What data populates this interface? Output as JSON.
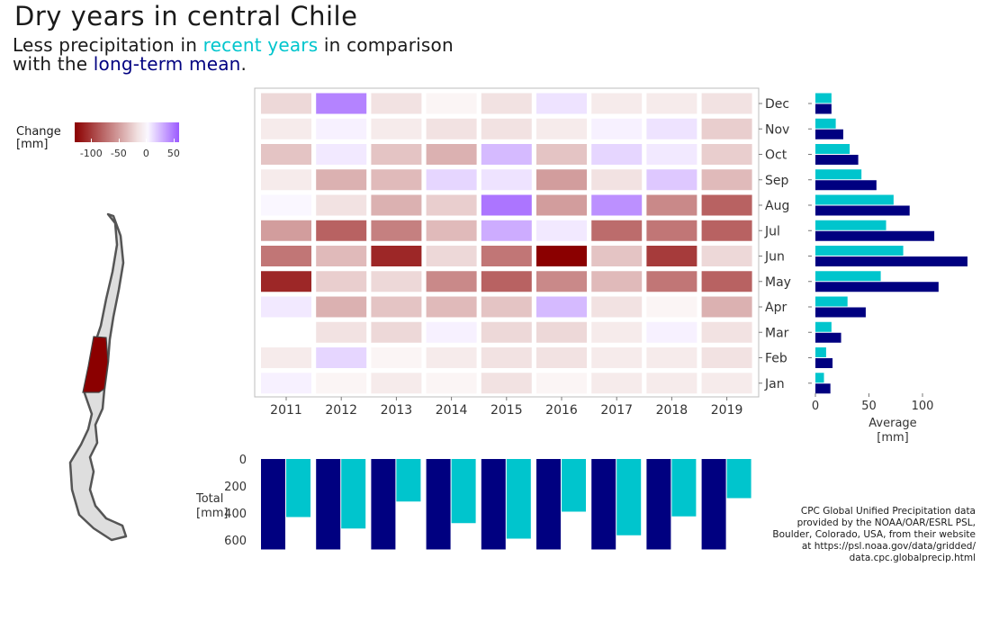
{
  "title": "Dry years in central Chile",
  "subtitle": {
    "line1_prefix": "Less precipitation in ",
    "line1_highlight": "recent years",
    "line1_suffix": " in comparison",
    "line2_prefix": "with the ",
    "line2_highlight": "long-term mean",
    "line2_suffix": "."
  },
  "colors": {
    "recent": "#00c5cd",
    "mean": "#000080",
    "dry": "#8b0000",
    "wet": "#9b59ff",
    "highlight_region": "#8b0000"
  },
  "legend": {
    "title_line1": "Change",
    "title_line2": "[mm]",
    "ticks": [
      "-100",
      "-50",
      "0",
      "50"
    ]
  },
  "source": {
    "line1": "CPC Global Unified Precipitation data",
    "line2": "provided by the NOAA/OAR/ESRL PSL,",
    "line3": "Boulder, Colorado, USA, from their website",
    "line4": "at https://psl.noaa.gov/data/gridded/",
    "line5": "data.cpc.globalprecip.html"
  },
  "chart_data": [
    {
      "type": "heatmap",
      "title": "",
      "years": [
        "2011",
        "2012",
        "2013",
        "2014",
        "2015",
        "2016",
        "2017",
        "2018",
        "2019"
      ],
      "months": [
        "Jan",
        "Feb",
        "Mar",
        "Apr",
        "May",
        "Jun",
        "Jul",
        "Aug",
        "Sep",
        "Oct",
        "Nov",
        "Dec"
      ],
      "values": [
        [
          5,
          -5,
          -10,
          -5,
          -15,
          -5,
          -10,
          -10,
          -10
        ],
        [
          -10,
          15,
          -5,
          -10,
          -15,
          -15,
          -10,
          -10,
          -15
        ],
        [
          0,
          -15,
          -20,
          5,
          -20,
          -20,
          -10,
          5,
          -15
        ],
        [
          8,
          -40,
          -30,
          -35,
          -30,
          25,
          -15,
          -5,
          -40
        ],
        [
          -110,
          -25,
          -20,
          -60,
          -80,
          -60,
          -35,
          -70,
          -80
        ],
        [
          -70,
          -35,
          -110,
          -20,
          -70,
          -130,
          -30,
          -100,
          -20
        ],
        [
          -50,
          -80,
          -65,
          -35,
          30,
          8,
          -75,
          -70,
          -80
        ],
        [
          3,
          -15,
          -40,
          -25,
          50,
          -50,
          40,
          -60,
          -80
        ],
        [
          -10,
          -40,
          -35,
          15,
          10,
          -50,
          -15,
          20,
          -35
        ],
        [
          -30,
          8,
          -30,
          -40,
          25,
          -30,
          15,
          8,
          -25
        ],
        [
          -10,
          5,
          -10,
          -15,
          -15,
          -10,
          5,
          10,
          -25
        ],
        [
          -20,
          45,
          -15,
          -5,
          -15,
          10,
          -10,
          -10,
          -15
        ]
      ],
      "color_scale": {
        "min": -130,
        "max": 60
      }
    },
    {
      "type": "bar",
      "orientation": "horizontal",
      "categories": [
        "Jan",
        "Feb",
        "Mar",
        "Apr",
        "May",
        "Jun",
        "Jul",
        "Aug",
        "Sep",
        "Oct",
        "Nov",
        "Dec"
      ],
      "series": [
        {
          "name": "recent years",
          "values": [
            8,
            10,
            15,
            30,
            61,
            82,
            66,
            73,
            43,
            32,
            19,
            15
          ]
        },
        {
          "name": "long-term mean",
          "values": [
            14,
            16,
            24,
            47,
            115,
            142,
            111,
            88,
            57,
            40,
            26,
            15
          ]
        }
      ],
      "xlabel": "Average\n[mm]",
      "xticks": [
        "0",
        "50",
        "100"
      ],
      "xlim": [
        0,
        150
      ]
    },
    {
      "type": "bar",
      "orientation": "vertical-downward",
      "categories": [
        "2011",
        "2012",
        "2013",
        "2014",
        "2015",
        "2016",
        "2017",
        "2018",
        "2019"
      ],
      "series": [
        {
          "name": "long-term mean",
          "values": [
            670,
            670,
            670,
            670,
            670,
            670,
            670,
            670,
            670
          ]
        },
        {
          "name": "recent years",
          "values": [
            430,
            515,
            315,
            475,
            590,
            390,
            565,
            425,
            290
          ]
        }
      ],
      "ylabel": "Total\n[mm]",
      "yticks": [
        "0",
        "200",
        "400",
        "600"
      ],
      "ylim": [
        0,
        670
      ]
    }
  ]
}
